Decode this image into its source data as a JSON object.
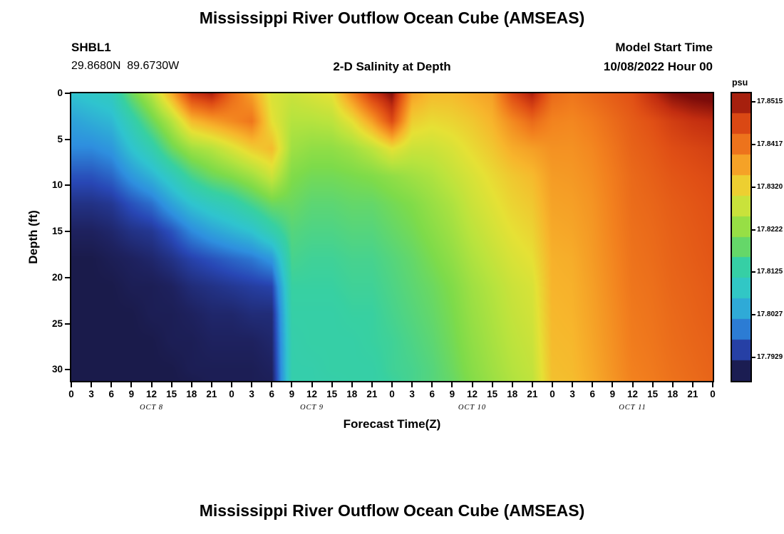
{
  "page": {
    "background": "#ffffff"
  },
  "chart": {
    "title": "Mississippi River Outflow Ocean Cube (AMSEAS)",
    "station": {
      "id": "SHBL1",
      "coordinates": "29.8680N  89.6730W"
    },
    "subtitle": "2-D Salinity at Depth",
    "model_start": {
      "label": "Model Start Time",
      "value": "10/08/2022 Hour 00"
    },
    "x_axis": {
      "title": "Forecast Time(Z)",
      "tick_labels": [
        "0",
        "3",
        "6",
        "9",
        "12",
        "15",
        "18",
        "21",
        "0",
        "3",
        "6",
        "9",
        "12",
        "15",
        "18",
        "21",
        "0",
        "3",
        "6",
        "9",
        "12",
        "15",
        "18",
        "21",
        "0",
        "3",
        "6",
        "9",
        "12",
        "15",
        "18",
        "21",
        "0"
      ],
      "day_labels": [
        "OCT 8",
        "OCT 9",
        "OCT 10",
        "OCT 11"
      ],
      "day_center_hours": [
        12,
        36,
        60,
        84
      ]
    },
    "y_axis": {
      "title": "Depth (ft)",
      "tick_labels": [
        "0",
        "5",
        "10",
        "15",
        "20",
        "25",
        "30"
      ],
      "tick_depths": [
        0,
        5,
        10,
        15,
        20,
        25,
        30
      ],
      "max_depth": 31.2
    },
    "colorbar": {
      "unit": "psu",
      "tick_labels": [
        "17.8515",
        "17.8417",
        "17.8320",
        "17.8222",
        "17.8125",
        "17.8027",
        "17.7929"
      ],
      "min": 17.7875,
      "max": 17.8535,
      "segments": 14
    }
  },
  "chart_data": {
    "type": "heatmap",
    "title": "Mississippi River Outflow Ocean Cube (AMSEAS) — 2-D Salinity at Depth (SHBL1)",
    "xlabel": "Forecast Time(Z)",
    "ylabel": "Depth (ft)",
    "unit": "psu",
    "x_range_hours": [
      0,
      96
    ],
    "y_range_ft": [
      0,
      31.2
    ],
    "value_range": [
      17.7875,
      17.8535
    ],
    "time_hours": [
      0,
      3,
      6,
      9,
      12,
      15,
      18,
      21,
      24,
      27,
      30,
      33,
      36,
      39,
      42,
      45,
      48,
      51,
      54,
      57,
      60,
      63,
      66,
      69,
      72,
      75,
      78,
      81,
      84,
      87,
      90,
      93,
      96
    ],
    "depth_ft": [
      0,
      3,
      6,
      9,
      12,
      15,
      18,
      21,
      24,
      27,
      30,
      32
    ],
    "values_by_time": [
      [
        17.8072,
        17.803,
        17.8003,
        17.7962,
        17.7928,
        17.7907,
        17.7894,
        17.7894,
        17.7894,
        17.7894,
        17.7894,
        17.7894
      ],
      [
        17.8085,
        17.8044,
        17.8003,
        17.7962,
        17.7928,
        17.7907,
        17.7894,
        17.7894,
        17.7894,
        17.7894,
        17.7894,
        17.7894
      ],
      [
        17.8099,
        17.8058,
        17.8017,
        17.7976,
        17.7935,
        17.7914,
        17.7901,
        17.7894,
        17.7894,
        17.7894,
        17.7894,
        17.7894
      ],
      [
        17.8188,
        17.8119,
        17.8072,
        17.8017,
        17.7962,
        17.7928,
        17.7907,
        17.7901,
        17.7894,
        17.7894,
        17.7894,
        17.7894
      ],
      [
        17.8256,
        17.8188,
        17.8119,
        17.8051,
        17.7983,
        17.7935,
        17.7914,
        17.7901,
        17.7901,
        17.7894,
        17.7894,
        17.7894
      ],
      [
        17.8359,
        17.8256,
        17.8188,
        17.8099,
        17.803,
        17.7962,
        17.7928,
        17.7907,
        17.7901,
        17.7901,
        17.7894,
        17.7894
      ],
      [
        17.8482,
        17.8345,
        17.8236,
        17.8154,
        17.8072,
        17.8003,
        17.7948,
        17.7921,
        17.7907,
        17.7901,
        17.7901,
        17.7894
      ],
      [
        17.8509,
        17.8372,
        17.8256,
        17.8188,
        17.8099,
        17.803,
        17.7962,
        17.7928,
        17.7914,
        17.7907,
        17.7901,
        17.7901
      ],
      [
        17.8427,
        17.8393,
        17.829,
        17.8208,
        17.8119,
        17.8051,
        17.7976,
        17.7935,
        17.7914,
        17.7907,
        17.7901,
        17.7901
      ],
      [
        17.8372,
        17.8414,
        17.8325,
        17.8236,
        17.8154,
        17.8072,
        17.7989,
        17.7942,
        17.7921,
        17.7907,
        17.7901,
        17.7901
      ],
      [
        17.829,
        17.8304,
        17.8345,
        17.8277,
        17.8188,
        17.8119,
        17.8017,
        17.7948,
        17.7921,
        17.7914,
        17.7907,
        17.7901
      ],
      [
        17.8277,
        17.8256,
        17.8236,
        17.8208,
        17.8188,
        17.8167,
        17.8154,
        17.814,
        17.8133,
        17.8126,
        17.8126,
        17.8126
      ],
      [
        17.829,
        17.8256,
        17.8222,
        17.8195,
        17.8174,
        17.816,
        17.8147,
        17.814,
        17.8133,
        17.8133,
        17.8126,
        17.8126
      ],
      [
        17.8304,
        17.8263,
        17.8222,
        17.8195,
        17.8174,
        17.816,
        17.8147,
        17.814,
        17.8133,
        17.8133,
        17.8133,
        17.8126
      ],
      [
        17.8393,
        17.8304,
        17.8236,
        17.8201,
        17.8181,
        17.8167,
        17.8154,
        17.8147,
        17.814,
        17.8133,
        17.8133,
        17.8133
      ],
      [
        17.8482,
        17.8372,
        17.8263,
        17.8208,
        17.8181,
        17.8167,
        17.8154,
        17.8147,
        17.814,
        17.814,
        17.8133,
        17.8133
      ],
      [
        17.853,
        17.8461,
        17.8304,
        17.8222,
        17.8195,
        17.8181,
        17.8167,
        17.816,
        17.8154,
        17.8147,
        17.8147,
        17.814
      ],
      [
        17.8372,
        17.8325,
        17.8277,
        17.8236,
        17.8208,
        17.8195,
        17.8181,
        17.8174,
        17.8167,
        17.816,
        17.8154,
        17.8154
      ],
      [
        17.8345,
        17.8311,
        17.8277,
        17.8249,
        17.8229,
        17.8215,
        17.8201,
        17.8188,
        17.8181,
        17.8174,
        17.8167,
        17.8167
      ],
      [
        17.8345,
        17.8318,
        17.829,
        17.827,
        17.8249,
        17.8236,
        17.8222,
        17.8208,
        17.8201,
        17.8195,
        17.8188,
        17.8181
      ],
      [
        17.8359,
        17.8331,
        17.8311,
        17.829,
        17.8277,
        17.8263,
        17.8249,
        17.8236,
        17.8229,
        17.8222,
        17.8215,
        17.8208
      ],
      [
        17.8372,
        17.8352,
        17.8331,
        17.8311,
        17.8297,
        17.8284,
        17.827,
        17.8256,
        17.8249,
        17.8243,
        17.8236,
        17.8229
      ],
      [
        17.8461,
        17.8393,
        17.8359,
        17.8331,
        17.8318,
        17.8304,
        17.829,
        17.8277,
        17.827,
        17.8263,
        17.8256,
        17.8249
      ],
      [
        17.8509,
        17.8427,
        17.8372,
        17.8345,
        17.8331,
        17.8318,
        17.8304,
        17.829,
        17.8284,
        17.8277,
        17.827,
        17.8263
      ],
      [
        17.8427,
        17.84,
        17.8386,
        17.8376,
        17.8369,
        17.8362,
        17.8355,
        17.8352,
        17.8348,
        17.8345,
        17.8341,
        17.8338
      ],
      [
        17.8414,
        17.8396,
        17.8386,
        17.8379,
        17.8372,
        17.8366,
        17.8359,
        17.8355,
        17.8352,
        17.8348,
        17.8345,
        17.8341
      ],
      [
        17.8427,
        17.8407,
        17.8396,
        17.8389,
        17.8383,
        17.8379,
        17.8376,
        17.8372,
        17.8369,
        17.8366,
        17.8362,
        17.8359
      ],
      [
        17.8441,
        17.8424,
        17.8414,
        17.8407,
        17.8403,
        17.84,
        17.8396,
        17.8393,
        17.8389,
        17.8386,
        17.8383,
        17.8379
      ],
      [
        17.8455,
        17.8441,
        17.8434,
        17.8427,
        17.8424,
        17.842,
        17.8417,
        17.8414,
        17.841,
        17.8407,
        17.8403,
        17.84
      ],
      [
        17.8496,
        17.8455,
        17.8444,
        17.8437,
        17.8431,
        17.8427,
        17.8424,
        17.842,
        17.8417,
        17.8414,
        17.841,
        17.8407
      ],
      [
        17.853,
        17.8475,
        17.8458,
        17.8448,
        17.8441,
        17.8437,
        17.8434,
        17.8431,
        17.8427,
        17.8424,
        17.842,
        17.8417
      ],
      [
        17.8543,
        17.8489,
        17.8465,
        17.8455,
        17.8448,
        17.8444,
        17.8441,
        17.8437,
        17.8434,
        17.8431,
        17.8427,
        17.8424
      ],
      [
        17.855,
        17.8496,
        17.8472,
        17.8461,
        17.8455,
        17.8451,
        17.8448,
        17.8444,
        17.8441,
        17.8437,
        17.8434,
        17.8431
      ]
    ],
    "colormap_stops": [
      [
        0.0,
        "#15112e"
      ],
      [
        0.05,
        "#1e2260"
      ],
      [
        0.12,
        "#2847b5"
      ],
      [
        0.2,
        "#2e8fdf"
      ],
      [
        0.3,
        "#2fc4cf"
      ],
      [
        0.4,
        "#37d0a2"
      ],
      [
        0.5,
        "#7edb4a"
      ],
      [
        0.58,
        "#b7e33e"
      ],
      [
        0.65,
        "#e6e135"
      ],
      [
        0.72,
        "#f7b62c"
      ],
      [
        0.8,
        "#f2801e"
      ],
      [
        0.88,
        "#e04f15"
      ],
      [
        0.94,
        "#c22d10"
      ],
      [
        1.0,
        "#7c0c0a"
      ]
    ],
    "legend_position": "right",
    "grid": false
  },
  "second_chart": {
    "title": "Mississippi River Outflow Ocean Cube (AMSEAS)"
  }
}
